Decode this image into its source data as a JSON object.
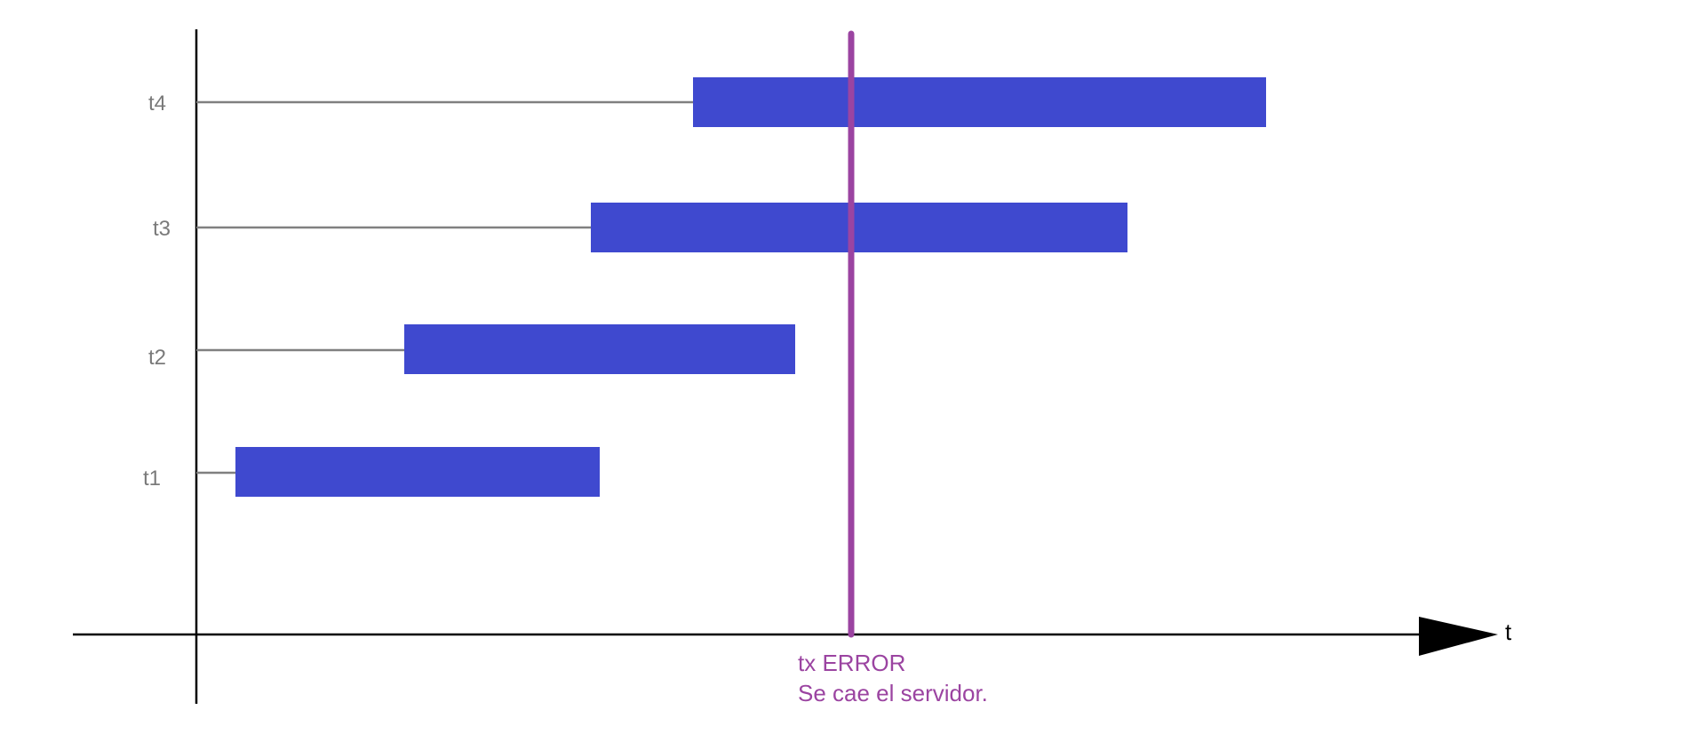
{
  "axis": {
    "x_label": "t"
  },
  "rows": [
    {
      "label": "t4",
      "start": 780,
      "end": 1425
    },
    {
      "label": "t3",
      "start": 665,
      "end": 1269
    },
    {
      "label": "t2",
      "start": 455,
      "end": 895
    },
    {
      "label": "t1",
      "start": 265,
      "end": 675
    }
  ],
  "event": {
    "position": 958,
    "line1": "tx ERROR",
    "line2": "Se cae el servidor."
  },
  "colors": {
    "bar": "#3f49cf",
    "connector": "#808080",
    "event": "#9b44a1",
    "axis": "#000000"
  }
}
